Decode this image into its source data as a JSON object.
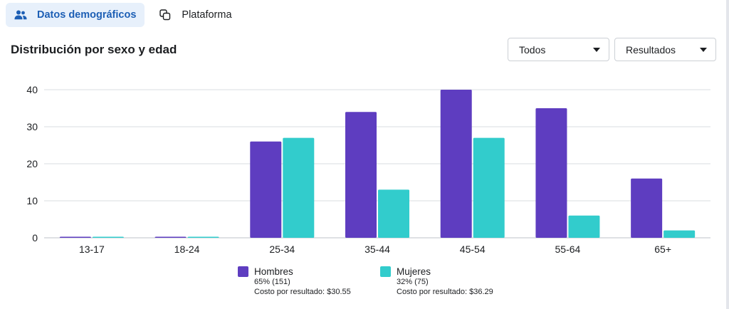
{
  "tabs": [
    {
      "label": "Datos demográficos",
      "icon": "people-icon",
      "active": true
    },
    {
      "label": "Plataforma",
      "icon": "copy-icon",
      "active": false
    }
  ],
  "title": "Distribución por sexo y edad",
  "dropdowns": {
    "filter": "Todos",
    "metric": "Resultados"
  },
  "colors": {
    "hombres": "#5e3dc0",
    "mujeres": "#32cccc",
    "grid": "#dadde1",
    "accent": "#1d5fb5"
  },
  "legend": [
    {
      "name": "Hombres",
      "share": "65% (151)",
      "cost": "Costo por resultado: $30.55"
    },
    {
      "name": "Mujeres",
      "share": "32% (75)",
      "cost": "Costo por resultado: $36.29"
    }
  ],
  "chart_data": {
    "type": "bar",
    "categories": [
      "13-17",
      "18-24",
      "25-34",
      "35-44",
      "45-54",
      "55-64",
      "65+"
    ],
    "series": [
      {
        "name": "Hombres",
        "values": [
          0,
          0,
          26,
          34,
          40,
          35,
          16
        ]
      },
      {
        "name": "Mujeres",
        "values": [
          0,
          0,
          27,
          13,
          27,
          6,
          2
        ]
      }
    ],
    "yticks": [
      0,
      10,
      20,
      30,
      40
    ],
    "ylim": [
      0,
      40
    ],
    "title": "Distribución por sexo y edad",
    "xlabel": "",
    "ylabel": "",
    "grid": true
  }
}
